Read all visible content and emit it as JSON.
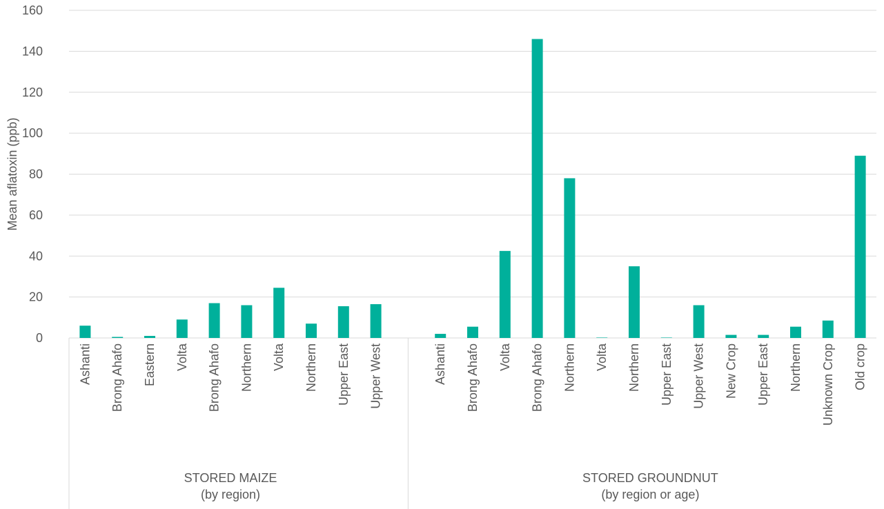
{
  "chart_data": {
    "type": "bar",
    "ylabel": "Mean aflatoxin (ppb)",
    "ylim": [
      0,
      160
    ],
    "yticks": [
      0,
      20,
      40,
      60,
      80,
      100,
      120,
      140,
      160
    ],
    "grid": true,
    "bar_color": "#00B09B",
    "groups": [
      {
        "line1": "STORED MAIZE",
        "line2": "(by region)",
        "categories": [
          "Ashanti",
          "Brong Ahafo",
          "Eastern",
          "Volta",
          "Brong Ahafo",
          "Northern",
          "Volta",
          "Northern",
          "Upper East",
          "Upper West"
        ],
        "values": [
          6,
          0.5,
          1,
          9,
          17,
          16,
          24.5,
          7,
          15.5,
          16.5
        ]
      },
      {
        "line1": "STORED GROUNDNUT",
        "line2": "(by region or age)",
        "categories": [
          "Ashanti",
          "Brong Ahafo",
          "Volta",
          "Brong Ahafo",
          "Northern",
          "Volta",
          "Northern",
          "Upper East",
          "Upper West",
          "New Crop",
          "Upper East",
          "Northern",
          "Unknown Crop",
          "Old crop"
        ],
        "values": [
          2,
          5.5,
          42.5,
          146,
          78,
          0.2,
          35,
          0.2,
          16,
          1.5,
          1.5,
          5.5,
          8.5,
          89
        ]
      }
    ]
  }
}
